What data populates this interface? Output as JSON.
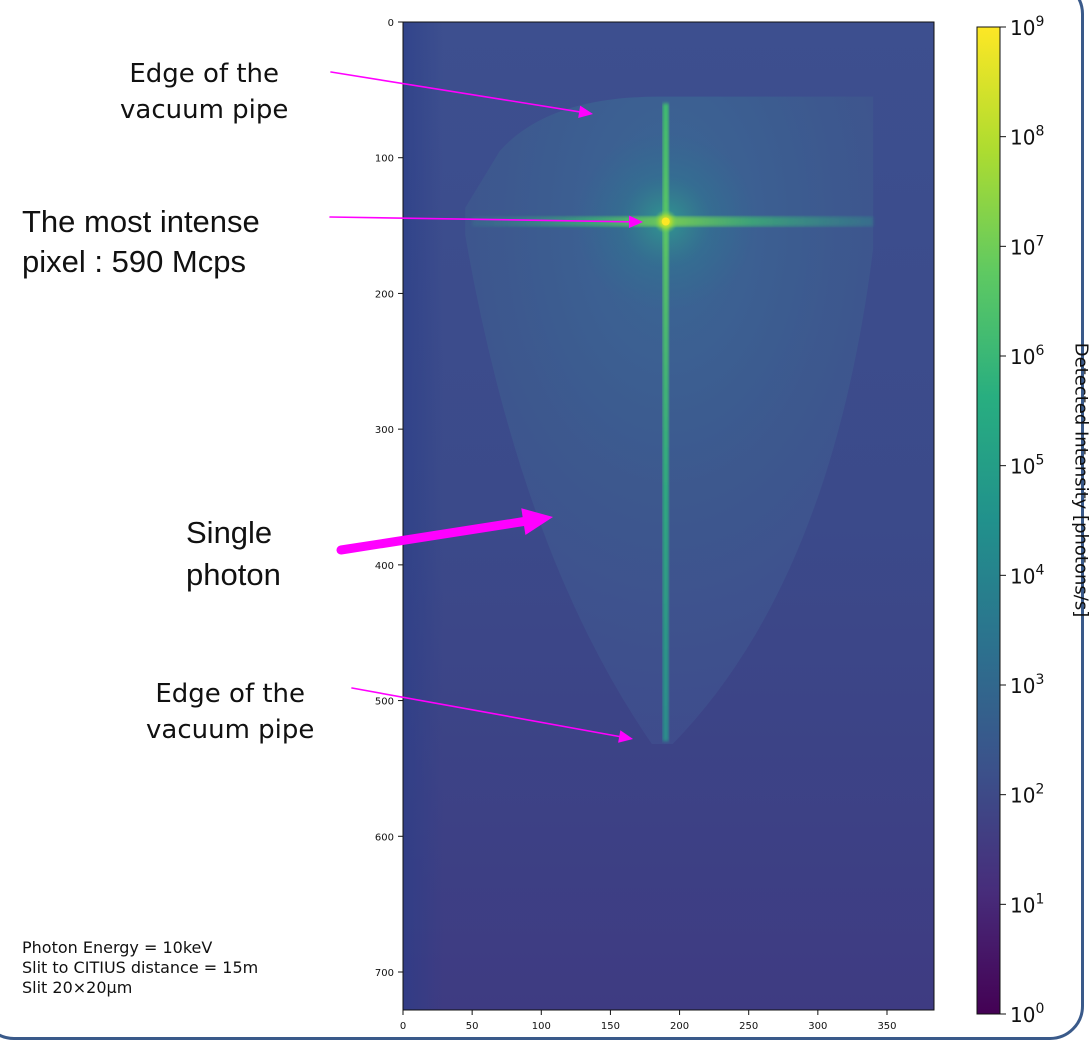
{
  "chart_data": {
    "type": "heatmap",
    "colormap": "viridis",
    "x_range": [
      0,
      384
    ],
    "y_range": [
      0,
      728
    ],
    "y_inverted": true,
    "x_ticks": [
      0,
      50,
      100,
      150,
      200,
      250,
      300,
      350
    ],
    "y_ticks": [
      0,
      100,
      200,
      300,
      400,
      500,
      600,
      700
    ],
    "colorbar": {
      "label": "Detected Intensity [photons/s]",
      "scale": "log",
      "range": [
        1,
        1000000000
      ],
      "tick_exponents": [
        0,
        1,
        2,
        3,
        4,
        5,
        6,
        7,
        8,
        9
      ]
    },
    "features": {
      "beam_center": {
        "x": 190,
        "y": 147
      },
      "vertical_streak": {
        "x": 190,
        "y_from": 60,
        "y_to": 530
      },
      "horizontal_streak": {
        "y": 147,
        "x_from": 50,
        "x_to": 340
      },
      "vacuum_pipe_region": {
        "x_from": 45,
        "x_to": 340,
        "y_from": 55,
        "y_to": 532
      }
    },
    "annotations": {
      "edge_top": [
        "Edge of the",
        "vacuum pipe"
      ],
      "peak": [
        "The most intense",
        "pixel : 590 Mcps"
      ],
      "single_photon": [
        "Single",
        "photon"
      ],
      "edge_bottom": [
        "Edge of the",
        "vacuum pipe"
      ],
      "conditions": [
        "Photon Energy = 10keV",
        "Slit to CITIUS distance = 15m",
        "Slit 20×20µm"
      ]
    }
  },
  "colors": {
    "annotation_arrow": "#ff00ff",
    "frame_border": "#3a5a8a",
    "background_low": "#3b4f8e",
    "streak": "#3fbf6f",
    "peak": "#fde725"
  }
}
